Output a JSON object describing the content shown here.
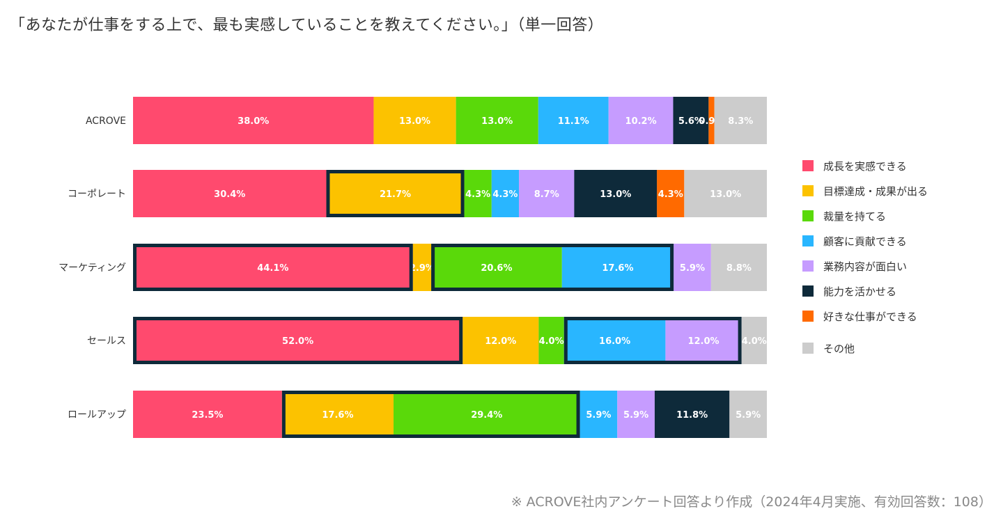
{
  "title": "「あなたが仕事をする上で、最も実感していることを教えてください。」（単一回答）",
  "footnote": "※ ACROVE社内アンケート回答より作成（2024年4月実施、有効回答数：108）",
  "chart_data": {
    "type": "bar",
    "orientation": "horizontal",
    "stacked": "100%",
    "categories": [
      "ACROVE",
      "コーポレート",
      "マーケティング",
      "セールス",
      "ロールアップ"
    ],
    "series": [
      {
        "name": "成長を実感できる",
        "color": "#ff4a6e",
        "values": [
          38.0,
          30.4,
          44.1,
          52.0,
          23.5
        ],
        "labels": [
          "38.0%",
          "30.4%",
          "44.1%",
          "52.0%",
          "23.5%"
        ]
      },
      {
        "name": "目標達成・成果が出る",
        "color": "#fcc200",
        "values": [
          13.0,
          21.7,
          2.9,
          12.0,
          17.6
        ],
        "labels": [
          "13.0%",
          "21.7%",
          "2.9%",
          "12.0%",
          "17.6%"
        ]
      },
      {
        "name": "裁量を持てる",
        "color": "#5ad90a",
        "values": [
          13.0,
          4.3,
          20.6,
          4.0,
          29.4
        ],
        "labels": [
          "13.0%",
          "4.3%",
          "20.6%",
          "4.0%",
          "29.4%"
        ]
      },
      {
        "name": "顧客に貢献できる",
        "color": "#29b6ff",
        "values": [
          11.1,
          4.3,
          17.6,
          16.0,
          5.9
        ],
        "labels": [
          "11.1%",
          "4.3%",
          "17.6%",
          "16.0%",
          "5.9%"
        ]
      },
      {
        "name": "業務内容が面白い",
        "color": "#c69cff",
        "values": [
          10.2,
          8.7,
          5.9,
          12.0,
          5.9
        ],
        "labels": [
          "10.2%",
          "8.7%",
          "5.9%",
          "12.0%",
          "5.9%"
        ]
      },
      {
        "name": "能力を活かせる",
        "color": "#0e2a3a",
        "values": [
          5.6,
          13.0,
          0,
          0,
          11.8
        ],
        "labels": [
          "5.6%",
          "13.0%",
          "",
          "",
          "11.8%"
        ]
      },
      {
        "name": "好きな仕事ができる",
        "color": "#ff6a00",
        "values": [
          0.9,
          4.3,
          0,
          0,
          0
        ],
        "labels": [
          "0.9%",
          "4.3%",
          "",
          "",
          ""
        ]
      },
      {
        "name": "その他",
        "color": "#cccccc",
        "values": [
          8.3,
          13.0,
          8.8,
          4.0,
          5.9
        ],
        "labels": [
          "8.3%",
          "13.0%",
          "8.8%",
          "4.0%",
          "5.9%"
        ]
      }
    ],
    "highlights": [
      {
        "category": "コーポレート",
        "series": [
          "目標達成・成果が出る"
        ]
      },
      {
        "category": "コーポレート",
        "series": [
          "能力を活かせる"
        ]
      },
      {
        "category": "マーケティング",
        "series": [
          "成長を実感できる"
        ]
      },
      {
        "category": "マーケティング",
        "series": [
          "裁量を持てる",
          "顧客に貢献できる"
        ]
      },
      {
        "category": "セールス",
        "series": [
          "成長を実感できる"
        ]
      },
      {
        "category": "セールス",
        "series": [
          "顧客に貢献できる",
          "業務内容が面白い"
        ]
      },
      {
        "category": "ロールアップ",
        "series": [
          "目標達成・成果が出る",
          "裁量を持てる"
        ]
      }
    ],
    "xlim": [
      0,
      100
    ],
    "legend_position": "right"
  }
}
